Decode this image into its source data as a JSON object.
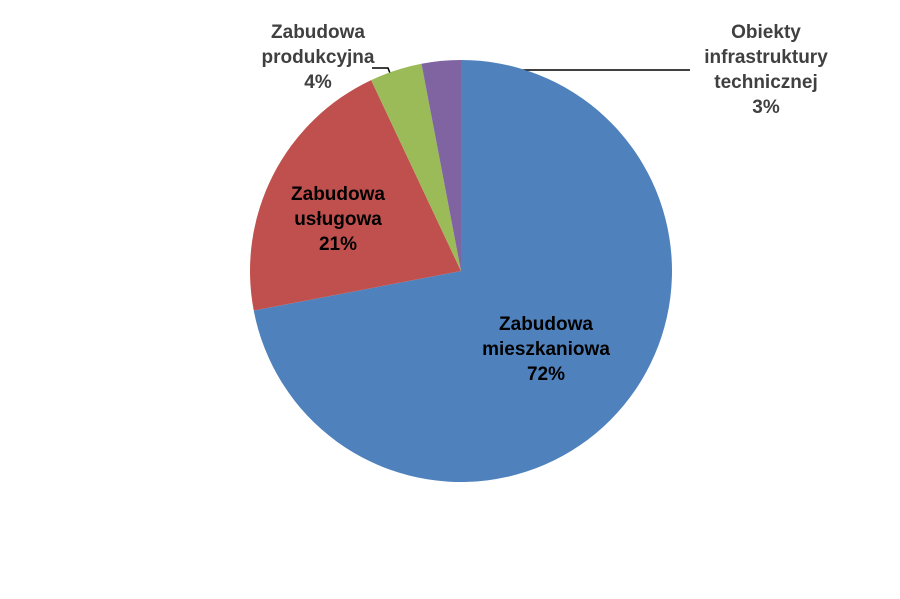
{
  "chart_data": {
    "type": "pie",
    "categories": [
      "Zabudowa mieszkaniowa",
      "Zabudowa usługowa",
      "Zabudowa produkcyjna",
      "Obiekty infrastruktury technicznej"
    ],
    "values": [
      72,
      21,
      4,
      3
    ],
    "value_labels": [
      "72%",
      "21%",
      "4%",
      "3%"
    ],
    "colors": [
      "#4f81bd",
      "#c0504d",
      "#9bbb59",
      "#8064a2"
    ]
  }
}
